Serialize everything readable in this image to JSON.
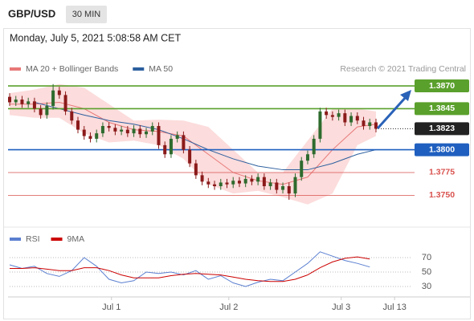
{
  "header": {
    "symbol": "GBP/USD",
    "interval": "30 MIN",
    "date": "Monday, July 5, 2021 5:08:58 AM CET"
  },
  "chart_data": [
    {
      "type": "candlestick",
      "credit": "Research © 2021 Trading Central",
      "up_color": "#2e6b2e",
      "down_color": "#8b1a1a",
      "xlim": [
        0,
        74.4
      ],
      "ylim": [
        1.3716,
        1.3929
      ],
      "x": [
        0,
        1,
        2,
        3,
        4,
        5,
        6,
        7,
        8,
        9,
        10,
        11,
        12,
        13,
        14,
        15,
        16,
        17,
        18,
        19,
        20,
        21,
        22,
        23,
        24,
        25,
        26,
        27,
        28,
        29,
        30,
        31,
        32,
        33,
        34,
        35,
        36,
        37,
        38,
        39,
        40,
        41,
        42,
        43,
        44,
        45,
        46,
        47,
        48,
        49,
        50,
        51,
        52,
        53,
        54,
        55,
        56,
        57,
        58,
        59
      ],
      "open": [
        1.3858,
        1.3852,
        1.3855,
        1.385,
        1.3853,
        1.3845,
        1.3838,
        1.3848,
        1.3865,
        1.386,
        1.3842,
        1.3832,
        1.3822,
        1.3815,
        1.3812,
        1.3818,
        1.3826,
        1.3824,
        1.382,
        1.3822,
        1.3818,
        1.3823,
        1.3817,
        1.382,
        1.3826,
        1.3805,
        1.3795,
        1.3812,
        1.3816,
        1.38,
        1.3785,
        1.3772,
        1.3765,
        1.3762,
        1.376,
        1.3764,
        1.3762,
        1.3766,
        1.3763,
        1.3768,
        1.3765,
        1.377,
        1.376,
        1.3764,
        1.3756,
        1.376,
        1.3752,
        1.377,
        1.3788,
        1.3795,
        1.3812,
        1.3842,
        1.3838,
        1.3836,
        1.384,
        1.383,
        1.3837,
        1.3832,
        1.3826,
        1.383
      ],
      "high": [
        1.3862,
        1.3859,
        1.3859,
        1.3857,
        1.3857,
        1.3849,
        1.3852,
        1.3872,
        1.3869,
        1.3864,
        1.3846,
        1.3836,
        1.3826,
        1.3819,
        1.3822,
        1.383,
        1.383,
        1.3828,
        1.3826,
        1.3826,
        1.3827,
        1.3827,
        1.3824,
        1.383,
        1.383,
        1.3809,
        1.3816,
        1.382,
        1.382,
        1.3804,
        1.3789,
        1.3776,
        1.3769,
        1.3766,
        1.3768,
        1.3768,
        1.377,
        1.377,
        1.3772,
        1.3772,
        1.3774,
        1.3774,
        1.3768,
        1.3768,
        1.3764,
        1.3764,
        1.3774,
        1.3792,
        1.3799,
        1.3816,
        1.3846,
        1.3846,
        1.3842,
        1.3844,
        1.3844,
        1.3841,
        1.3841,
        1.3836,
        1.3834,
        1.3834
      ],
      "low": [
        1.3848,
        1.3848,
        1.3846,
        1.3846,
        1.3841,
        1.3834,
        1.3834,
        1.3844,
        1.3856,
        1.3838,
        1.3828,
        1.3818,
        1.3811,
        1.3808,
        1.3808,
        1.3814,
        1.382,
        1.3816,
        1.3816,
        1.3814,
        1.3814,
        1.3813,
        1.3813,
        1.3816,
        1.3801,
        1.3791,
        1.3791,
        1.3808,
        1.3796,
        1.3781,
        1.3768,
        1.3761,
        1.3758,
        1.3756,
        1.3756,
        1.3758,
        1.3758,
        1.3759,
        1.3759,
        1.3761,
        1.3761,
        1.3756,
        1.3756,
        1.3752,
        1.3752,
        1.3745,
        1.3748,
        1.3766,
        1.3784,
        1.3791,
        1.3808,
        1.3834,
        1.3832,
        1.3832,
        1.3826,
        1.3826,
        1.3828,
        1.3822,
        1.3822,
        1.3819
      ],
      "close": [
        1.3852,
        1.3855,
        1.385,
        1.3853,
        1.3845,
        1.3838,
        1.3848,
        1.3865,
        1.386,
        1.3842,
        1.3832,
        1.3822,
        1.3815,
        1.3812,
        1.3818,
        1.3826,
        1.3824,
        1.382,
        1.3822,
        1.3818,
        1.3823,
        1.3817,
        1.382,
        1.3826,
        1.3805,
        1.3795,
        1.3812,
        1.3816,
        1.38,
        1.3785,
        1.3772,
        1.3765,
        1.3762,
        1.376,
        1.3764,
        1.3762,
        1.3766,
        1.3763,
        1.3768,
        1.3765,
        1.377,
        1.376,
        1.3764,
        1.3756,
        1.376,
        1.3752,
        1.377,
        1.3788,
        1.3795,
        1.3812,
        1.3842,
        1.3838,
        1.3836,
        1.384,
        1.383,
        1.3837,
        1.3832,
        1.3826,
        1.383,
        1.3823
      ],
      "indicators": [
        {
          "name": "MA 20 + Bollinger Bands",
          "color": "#e87878",
          "band_color": "#fbd3d3",
          "x": [
            0,
            4,
            8,
            12,
            16,
            20,
            24,
            28,
            32,
            36,
            40,
            44,
            48,
            52,
            56,
            59
          ],
          "values": [
            1.385,
            1.385,
            1.3852,
            1.3845,
            1.383,
            1.3822,
            1.382,
            1.3815,
            1.3795,
            1.3775,
            1.3766,
            1.3762,
            1.377,
            1.38,
            1.3825,
            1.3828
          ],
          "upper": [
            1.3862,
            1.3866,
            1.3872,
            1.3868,
            1.385,
            1.3832,
            1.3833,
            1.3832,
            1.3825,
            1.38,
            1.3775,
            1.3775,
            1.381,
            1.3845,
            1.3845,
            1.3842
          ],
          "lower": [
            1.3838,
            1.3835,
            1.3835,
            1.3818,
            1.3808,
            1.381,
            1.3805,
            1.379,
            1.3762,
            1.3752,
            1.3755,
            1.3748,
            1.374,
            1.3752,
            1.3805,
            1.3815
          ]
        },
        {
          "name": "MA 50",
          "color": "#2c5f9e",
          "x": [
            0,
            4,
            8,
            12,
            16,
            20,
            24,
            28,
            32,
            36,
            40,
            44,
            48,
            52,
            56,
            59
          ],
          "values": [
            null,
            1.3852,
            1.3845,
            1.3838,
            1.3832,
            1.3828,
            1.3822,
            1.3812,
            1.38,
            1.379,
            1.3782,
            1.3778,
            1.3778,
            1.3785,
            1.3795,
            1.38
          ]
        }
      ],
      "levels": [
        {
          "value": 1.387,
          "label": "1.3870",
          "color": "#5aa02c",
          "box": true,
          "line": "solid"
        },
        {
          "value": 1.3845,
          "label": "1.3845",
          "color": "#5aa02c",
          "box": true,
          "line": "solid"
        },
        {
          "value": 1.3823,
          "label": "1.3823",
          "color": "#222222",
          "box": true,
          "line": "dotted"
        },
        {
          "value": 1.38,
          "label": "1.3800",
          "color": "#1f5fbf",
          "box": true,
          "line": "solid"
        },
        {
          "value": 1.3775,
          "label": "1.3775",
          "color": "#d9534f",
          "box": false,
          "line": "solid"
        },
        {
          "value": 1.375,
          "label": "1.3750",
          "color": "#d9534f",
          "box": false,
          "line": "solid"
        }
      ]
    },
    {
      "type": "line",
      "xlim": [
        0,
        74.4
      ],
      "ylim": [
        16,
        90
      ],
      "yticks": [
        70,
        50,
        30
      ],
      "xticks": [
        {
          "value": 16.4,
          "label": "Jul 1"
        },
        {
          "value": 35.3,
          "label": "Jul 2"
        },
        {
          "value": 53.4,
          "label": "Jul 3"
        },
        {
          "value": 62,
          "label": "Jul 13"
        }
      ],
      "x": [
        0,
        2,
        4,
        6,
        8,
        10,
        12,
        14,
        16,
        18,
        20,
        22,
        24,
        26,
        28,
        30,
        32,
        34,
        36,
        38,
        40,
        42,
        44,
        46,
        48,
        50,
        52,
        54,
        56,
        58
      ],
      "series": [
        {
          "name": "RSI",
          "color": "#5b7fd0",
          "values": [
            60,
            55,
            58,
            48,
            44,
            52,
            70,
            58,
            40,
            35,
            38,
            50,
            48,
            50,
            46,
            52,
            40,
            45,
            35,
            30,
            36,
            40,
            38,
            50,
            62,
            78,
            72,
            66,
            62,
            57
          ]
        },
        {
          "name": "9MA",
          "color": "#cc0000",
          "values": [
            55,
            55,
            56,
            54,
            52,
            52,
            56,
            56,
            52,
            46,
            42,
            42,
            42,
            45,
            47,
            48,
            47,
            46,
            43,
            40,
            38,
            37,
            37,
            40,
            46,
            56,
            64,
            69,
            71,
            68
          ]
        }
      ]
    }
  ]
}
